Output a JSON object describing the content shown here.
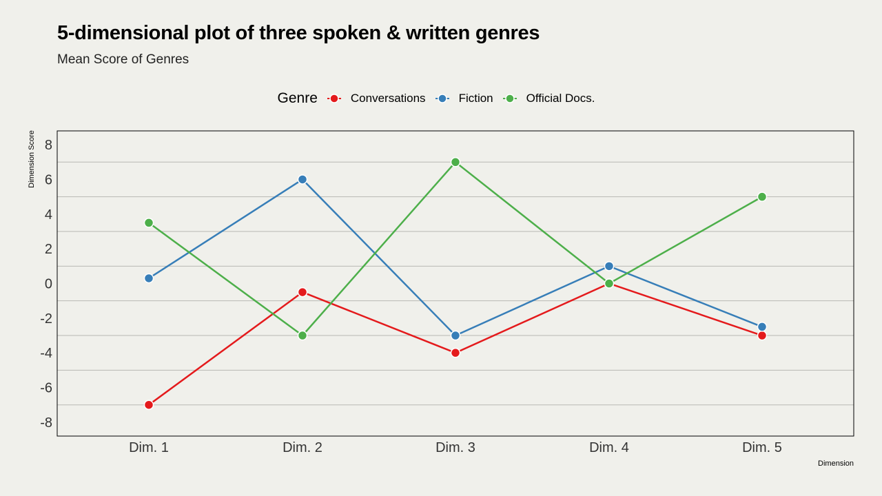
{
  "chart_data": {
    "type": "line",
    "title": "5-dimensional plot of three spoken & written genres",
    "subtitle": "Mean Score of Genres",
    "xlabel": "Dimension",
    "ylabel": "Dimension Score",
    "categories": [
      "Dim. 1",
      "Dim. 2",
      "Dim. 3",
      "Dim. 4",
      "Dim. 5"
    ],
    "ylim": [
      -8.8,
      8.8
    ],
    "yticks": [
      -8,
      -6,
      -4,
      -2,
      0,
      2,
      4,
      6,
      8
    ],
    "grid": "horizontal",
    "legend": {
      "title": "Genre",
      "position": "top-center"
    },
    "series": [
      {
        "name": "Conversations",
        "color": "#e41a1c",
        "values": [
          -7,
          -0.5,
          -4,
          0,
          -3
        ]
      },
      {
        "name": "Fiction",
        "color": "#377eb8",
        "values": [
          0.3,
          6,
          -3,
          1,
          -2.5
        ]
      },
      {
        "name": "Official Docs.",
        "color": "#4daf4a",
        "values": [
          3.5,
          -3,
          7,
          0,
          5
        ]
      }
    ]
  }
}
